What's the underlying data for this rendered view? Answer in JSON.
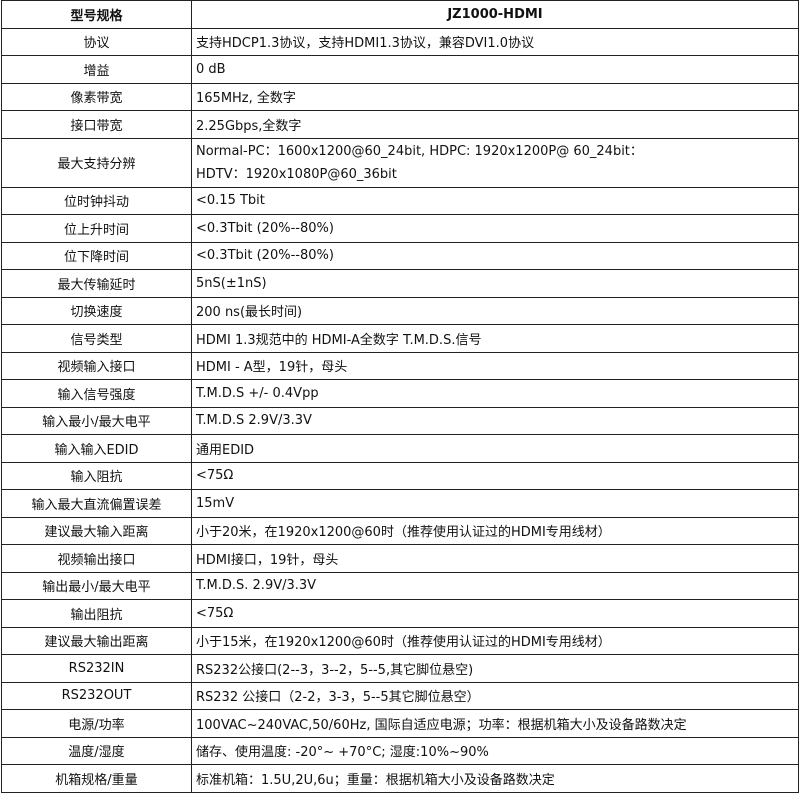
{
  "header": {
    "label": "型号规格",
    "model": "JZ1000-HDMI"
  },
  "rows": [
    {
      "label": "协议",
      "value": "支持HDCP1.3协议，支持HDMI1.3协议，兼容DVI1.0协议"
    },
    {
      "label": "增益",
      "value": "0 dB"
    },
    {
      "label": "像素带宽",
      "value": "165MHz, 全数字"
    },
    {
      "label": "接口带宽",
      "value": "2.25Gbps,全数字"
    },
    {
      "label": "最大支持分辨",
      "value": "Normal-PC：1600x1200@60_24bit, HDPC: 1920x1200P@ 60_24bit：",
      "value2": "HDTV：1920x1080P@60_36bit"
    },
    {
      "label": "位时钟抖动",
      "value": "<0.15 Tbit"
    },
    {
      "label": "位上升时间",
      "value": "<0.3Tbit (20%--80%)"
    },
    {
      "label": "位下降时间",
      "value": "<0.3Tbit (20%--80%)"
    },
    {
      "label": "最大传输延时",
      "value": "5nS(±1nS)"
    },
    {
      "label": "切换速度",
      "value": "200 ns(最长时间)"
    },
    {
      "label": "信号类型",
      "value": "HDMI 1.3规范中的 HDMI-A全数字 T.M.D.S.信号"
    },
    {
      "label": "视频输入接口",
      "value": "HDMI - A型，19针，母头"
    },
    {
      "label": "输入信号强度",
      "value": "T.M.D.S +/- 0.4Vpp"
    },
    {
      "label": "输入最小/最大电平",
      "value": "T.M.D.S 2.9V/3.3V"
    },
    {
      "label": "输入输入EDID",
      "value": "通用EDID"
    },
    {
      "label": "输入阻抗",
      "value": "<75Ω"
    },
    {
      "label": "输入最大直流偏置误差",
      "value": "15mV"
    },
    {
      "label": "建议最大输入距离",
      "value": "小于20米，在1920x1200@60时（推荐使用认证过的HDMI专用线材）"
    },
    {
      "label": "视频输出接口",
      "value": "HDMI接口，19针，母头"
    },
    {
      "label": "输出最小/最大电平",
      "value": "T.M.D.S. 2.9V/3.3V"
    },
    {
      "label": "输出阻抗",
      "value": "<75Ω"
    },
    {
      "label": "建议最大输出距离",
      "value": "小于15米，在1920x1200@60时（推荐使用认证过的HDMI专用线材）"
    },
    {
      "label": "RS232IN",
      "value": "RS232公接口(2--3，3--2，5--5,其它脚位悬空)"
    },
    {
      "label": "RS232OUT",
      "value": "RS232 公接口（2-2，3-3，5--5其它脚位悬空）"
    },
    {
      "label": "电源/功率",
      "value": "100VAC~240VAC,50/60Hz, 国际自适应电源；功率：根据机箱大小及设备路数决定"
    },
    {
      "label": "温度/湿度",
      "value": "储存、使用温度: -20°~ +70°C; 湿度:10%~90%"
    },
    {
      "label": "机箱规格/重量",
      "value": "标准机箱：1.5U,2U,6u；重量：根据机箱大小及设备路数决定"
    }
  ]
}
